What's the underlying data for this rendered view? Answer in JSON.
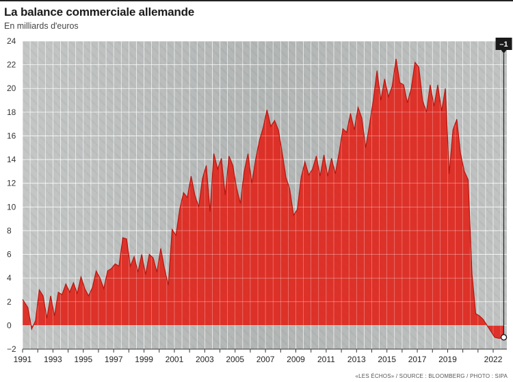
{
  "header": {
    "title": "La balance commerciale allemande",
    "subtitle": "En milliards d'euros"
  },
  "footer": {
    "credits": "«LES ÉCHOS» / SOURCE : BLOOMBERG / PHOTO : SIPA"
  },
  "colors": {
    "area": "#e0261c",
    "line": "#b51710",
    "background_photo": "#b9bcbb",
    "badge": "#1a1a1a"
  },
  "chart_data": {
    "type": "area",
    "title": "La balance commerciale allemande",
    "ylabel": "En milliards d'euros",
    "ylim": [
      -2,
      24
    ],
    "yticks": [
      -2,
      0,
      2,
      4,
      6,
      8,
      10,
      12,
      14,
      16,
      18,
      20,
      22,
      24
    ],
    "xlim": [
      1991,
      2022.9
    ],
    "xticks": [
      1991,
      1993,
      1995,
      1997,
      1999,
      2001,
      2003,
      2005,
      2007,
      2009,
      2011,
      2013,
      2015,
      2017,
      2019,
      2022
    ],
    "grid": true,
    "annotation": {
      "label": "–1",
      "x": 2022.7,
      "y": -1
    },
    "series": [
      {
        "values": [
          [
            1991.0,
            2.2
          ],
          [
            1991.35,
            1.5
          ],
          [
            1991.6,
            -0.3
          ],
          [
            1991.85,
            0.4
          ],
          [
            1992.1,
            3.0
          ],
          [
            1992.35,
            2.5
          ],
          [
            1992.6,
            0.6
          ],
          [
            1992.85,
            2.5
          ],
          [
            1993.1,
            0.8
          ],
          [
            1993.35,
            2.8
          ],
          [
            1993.6,
            2.6
          ],
          [
            1993.85,
            3.5
          ],
          [
            1994.1,
            2.8
          ],
          [
            1994.35,
            3.6
          ],
          [
            1994.6,
            2.7
          ],
          [
            1994.85,
            4.1
          ],
          [
            1995.1,
            3.1
          ],
          [
            1995.35,
            2.5
          ],
          [
            1995.6,
            3.2
          ],
          [
            1995.85,
            4.6
          ],
          [
            1996.1,
            4.0
          ],
          [
            1996.35,
            3.1
          ],
          [
            1996.6,
            4.6
          ],
          [
            1996.85,
            4.8
          ],
          [
            1997.1,
            5.2
          ],
          [
            1997.35,
            5.0
          ],
          [
            1997.6,
            7.4
          ],
          [
            1997.85,
            7.3
          ],
          [
            1998.1,
            5.0
          ],
          [
            1998.35,
            5.8
          ],
          [
            1998.6,
            4.5
          ],
          [
            1998.85,
            6.0
          ],
          [
            1999.1,
            4.3
          ],
          [
            1999.35,
            6.0
          ],
          [
            1999.6,
            5.7
          ],
          [
            1999.85,
            4.5
          ],
          [
            2000.1,
            6.5
          ],
          [
            2000.35,
            4.8
          ],
          [
            2000.6,
            3.4
          ],
          [
            2000.85,
            8.1
          ],
          [
            2001.1,
            7.6
          ],
          [
            2001.35,
            9.8
          ],
          [
            2001.6,
            11.2
          ],
          [
            2001.85,
            10.8
          ],
          [
            2002.1,
            12.6
          ],
          [
            2002.35,
            11.0
          ],
          [
            2002.6,
            10.0
          ],
          [
            2002.85,
            12.4
          ],
          [
            2003.1,
            13.5
          ],
          [
            2003.35,
            9.6
          ],
          [
            2003.6,
            14.5
          ],
          [
            2003.85,
            13.2
          ],
          [
            2004.1,
            14.1
          ],
          [
            2004.35,
            11.0
          ],
          [
            2004.6,
            14.3
          ],
          [
            2004.85,
            13.5
          ],
          [
            2005.1,
            11.6
          ],
          [
            2005.35,
            10.3
          ],
          [
            2005.6,
            13.0
          ],
          [
            2005.85,
            14.5
          ],
          [
            2006.1,
            12.0
          ],
          [
            2006.35,
            14.0
          ],
          [
            2006.6,
            15.6
          ],
          [
            2006.85,
            16.7
          ],
          [
            2007.1,
            18.2
          ],
          [
            2007.35,
            16.8
          ],
          [
            2007.6,
            17.3
          ],
          [
            2007.85,
            16.5
          ],
          [
            2008.1,
            14.6
          ],
          [
            2008.35,
            12.5
          ],
          [
            2008.6,
            11.5
          ],
          [
            2008.85,
            9.3
          ],
          [
            2009.1,
            9.8
          ],
          [
            2009.35,
            12.5
          ],
          [
            2009.6,
            13.8
          ],
          [
            2009.85,
            12.7
          ],
          [
            2010.1,
            13.2
          ],
          [
            2010.35,
            14.3
          ],
          [
            2010.6,
            12.6
          ],
          [
            2010.85,
            14.4
          ],
          [
            2011.1,
            12.6
          ],
          [
            2011.35,
            14.1
          ],
          [
            2011.6,
            12.8
          ],
          [
            2011.85,
            14.6
          ],
          [
            2012.1,
            16.6
          ],
          [
            2012.35,
            16.3
          ],
          [
            2012.6,
            17.9
          ],
          [
            2012.85,
            16.5
          ],
          [
            2013.1,
            18.4
          ],
          [
            2013.35,
            17.5
          ],
          [
            2013.6,
            15.0
          ],
          [
            2013.85,
            16.9
          ],
          [
            2014.1,
            19.0
          ],
          [
            2014.35,
            21.5
          ],
          [
            2014.6,
            19.0
          ],
          [
            2014.85,
            20.8
          ],
          [
            2015.1,
            19.3
          ],
          [
            2015.35,
            20.2
          ],
          [
            2015.6,
            22.5
          ],
          [
            2015.85,
            20.5
          ],
          [
            2016.1,
            20.3
          ],
          [
            2016.35,
            18.8
          ],
          [
            2016.6,
            20.0
          ],
          [
            2016.85,
            22.2
          ],
          [
            2017.1,
            21.8
          ],
          [
            2017.35,
            19.0
          ],
          [
            2017.6,
            18.0
          ],
          [
            2017.85,
            20.3
          ],
          [
            2018.1,
            18.5
          ],
          [
            2018.35,
            20.3
          ],
          [
            2018.6,
            18.1
          ],
          [
            2018.85,
            20.0
          ],
          [
            2019.1,
            12.8
          ],
          [
            2019.35,
            16.5
          ],
          [
            2019.6,
            17.4
          ],
          [
            2019.85,
            14.5
          ],
          [
            2020.1,
            13.0
          ],
          [
            2020.35,
            12.3
          ],
          [
            2020.6,
            4.4
          ],
          [
            2020.85,
            1.0
          ],
          [
            2021.1,
            0.8
          ],
          [
            2021.35,
            0.5
          ],
          [
            2021.6,
            0.0
          ],
          [
            2021.85,
            -0.5
          ],
          [
            2022.1,
            -1.0
          ],
          [
            2022.4,
            -1.1
          ],
          [
            2022.7,
            -1.0
          ]
        ]
      }
    ]
  }
}
